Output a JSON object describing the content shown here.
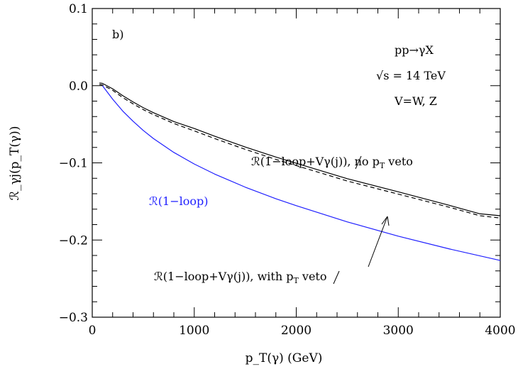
{
  "chart_data": {
    "type": "line",
    "panel_label": "b)",
    "xlabel": "p_T(γ)  (GeV)",
    "ylabel": "ℛ_γj(p_T(γ))",
    "xlim": [
      0,
      4000
    ],
    "ylim": [
      -0.3,
      0.1
    ],
    "x_ticks": [
      0,
      1000,
      2000,
      3000,
      4000
    ],
    "x_tick_labels": [
      "0",
      "1000",
      "2000",
      "3000",
      "4000"
    ],
    "y_ticks": [
      0.1,
      0.0,
      -0.1,
      -0.2,
      -0.3
    ],
    "y_tick_labels": [
      "0.1",
      "0.0",
      "−0.1",
      "−0.2",
      "−0.3"
    ],
    "grid": false,
    "process_text": {
      "reaction": "pp→γX",
      "energy": "√s  =  14  TeV",
      "bosons": "V=W,  Z"
    },
    "series": [
      {
        "name": "ℛ(1−loop)",
        "color": "#1f1fff",
        "style": "solid",
        "x": [
          100,
          200,
          300,
          400,
          500,
          600,
          800,
          1000,
          1200,
          1500,
          1800,
          2000,
          2500,
          3000,
          3500,
          4000
        ],
        "y": [
          0.0,
          -0.0175,
          -0.033,
          -0.046,
          -0.058,
          -0.0685,
          -0.0865,
          -0.1015,
          -0.1145,
          -0.1315,
          -0.1465,
          -0.1555,
          -0.1765,
          -0.195,
          -0.2115,
          -0.2265
        ]
      },
      {
        "name": "ℛ(1−loop+Vγ(j)), no p̸_T veto",
        "color": "#000000",
        "style": "solid",
        "x": [
          70,
          100,
          200,
          300,
          400,
          500,
          600,
          800,
          1000,
          1200,
          1500,
          1800,
          2000,
          2500,
          3000,
          3500,
          3800,
          4000
        ],
        "y": [
          0.0035,
          0.003,
          -0.004,
          -0.013,
          -0.021,
          -0.0285,
          -0.035,
          -0.0465,
          -0.0555,
          -0.0655,
          -0.0795,
          -0.0925,
          -0.1005,
          -0.1205,
          -0.1375,
          -0.155,
          -0.166,
          -0.1685
        ]
      },
      {
        "name": "ℛ(1−loop+Vγ(j)), with p̸_T veto",
        "color": "#000000",
        "style": "dashed",
        "x": [
          70,
          100,
          200,
          300,
          400,
          500,
          600,
          800,
          1000,
          1200,
          1500,
          1800,
          2000,
          2500,
          3000,
          3500,
          3800,
          4000
        ],
        "y": [
          0.0015,
          0.001,
          -0.006,
          -0.0155,
          -0.0235,
          -0.031,
          -0.0375,
          -0.049,
          -0.0585,
          -0.0685,
          -0.0825,
          -0.0955,
          -0.1035,
          -0.1235,
          -0.1405,
          -0.1575,
          -0.1685,
          -0.1715
        ]
      }
    ],
    "annotations": {
      "blue_label": "ℛ(1−loop)",
      "no_veto_prefix": "ℛ(1−loop+Vγ(j)),  no  ",
      "with_veto_prefix": "ℛ(1−loop+Vγ(j)),  with  ",
      "pt_p": "p",
      "pt_sub": "T",
      "veto_word": " veto"
    }
  }
}
